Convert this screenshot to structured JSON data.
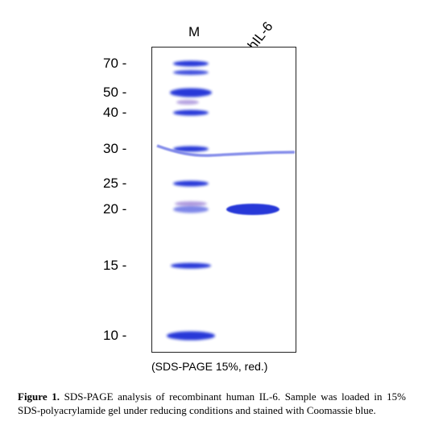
{
  "lanes": {
    "marker_label": "M",
    "sample_label": "hIL-6"
  },
  "mw_markers": [
    {
      "label": "70 -",
      "kda": 70
    },
    {
      "label": "50 -",
      "kda": 50
    },
    {
      "label": "40 -",
      "kda": 40
    },
    {
      "label": "30 -",
      "kda": 30
    },
    {
      "label": "25 -",
      "kda": 25
    },
    {
      "label": "20 -",
      "kda": 20
    },
    {
      "label": "15 -",
      "kda": 15
    },
    {
      "label": "10 -",
      "kda": 10
    }
  ],
  "sample_band": {
    "lane": "hIL-6",
    "kda": 20
  },
  "gel_caption": "(SDS-PAGE 15%, red.)",
  "figure_caption": {
    "label": "Figure 1.",
    "text": " SDS-PAGE analysis of recombinant human IL-6. Sample was loaded in 15% SDS-polyacrylamide gel under reducing conditions and stained with Coomassie blue."
  },
  "colors": {
    "band_dark": "#1a2fd6",
    "band_light": "#6f79e6",
    "band_purple": "#7a58c8",
    "background": "#ffffff"
  }
}
